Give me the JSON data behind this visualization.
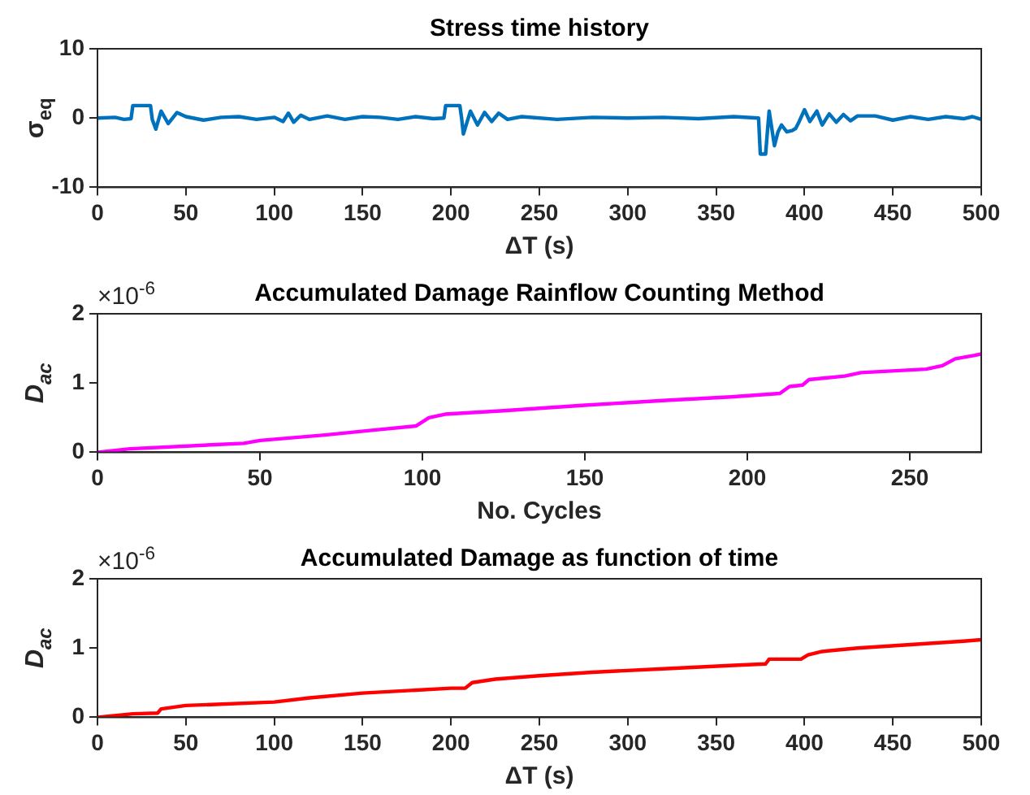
{
  "chart_data": [
    {
      "type": "line",
      "title": "Stress time history",
      "xlabel": "ΔT (s)",
      "ylabel": "σ$_{eq}$",
      "xlim": [
        0,
        500
      ],
      "xticks": [
        0,
        50,
        100,
        150,
        200,
        250,
        300,
        350,
        400,
        450,
        500
      ],
      "ylim": [
        -10,
        10
      ],
      "yticks": [
        -10,
        0,
        10
      ],
      "grid": false,
      "legend": false,
      "marker": "none",
      "line_style": "solid",
      "series": [
        {
          "color": "#0072bd",
          "x": [
            0,
            10,
            15,
            19,
            20,
            30,
            31,
            33,
            36,
            40,
            45,
            50,
            60,
            70,
            80,
            90,
            100,
            105,
            108,
            111,
            115,
            120,
            130,
            140,
            150,
            160,
            170,
            180,
            190,
            196,
            197,
            205,
            206,
            207,
            211,
            215,
            219,
            223,
            227,
            232,
            240,
            260,
            280,
            300,
            320,
            340,
            360,
            374,
            375,
            378,
            379,
            380,
            383,
            385,
            387,
            390,
            393,
            395,
            397,
            400,
            403,
            407,
            410,
            414,
            418,
            422,
            426,
            430,
            440,
            450,
            460,
            470,
            480,
            490,
            495,
            500
          ],
          "values": [
            0,
            0.1,
            -0.2,
            -0.1,
            1.8,
            1.8,
            -0.2,
            -1.6,
            1,
            -0.8,
            0.8,
            0.2,
            -0.3,
            0.1,
            0.2,
            -0.2,
            0.1,
            -0.5,
            0.7,
            -0.6,
            0.4,
            -0.2,
            0.3,
            -0.2,
            0.2,
            0.1,
            -0.2,
            0.2,
            -0.1,
            0,
            1.8,
            1.8,
            0,
            -2.3,
            1,
            -1,
            0.8,
            -0.5,
            0.7,
            -0.2,
            0.2,
            -0.2,
            0.1,
            0,
            0.1,
            -0.1,
            0.2,
            0,
            -5.2,
            -5.2,
            -2,
            1,
            -4,
            -2,
            -1,
            -2,
            -1.8,
            -1.5,
            -0.5,
            1.2,
            -0.5,
            1,
            -1,
            0.6,
            -0.6,
            0.5,
            -0.4,
            0.3,
            0.3,
            -0.3,
            0.2,
            -0.2,
            0.2,
            -0.1,
            0.2,
            -0.2
          ]
        }
      ]
    },
    {
      "type": "line",
      "title": "Accumulated Damage Rainflow Counting Method",
      "xlabel": "No. Cycles",
      "ylabel": "D$_{ac}$",
      "annotations": [
        "×10$^{-6}$"
      ],
      "xlim": [
        0,
        272
      ],
      "xticks": [
        0,
        50,
        100,
        150,
        200,
        250
      ],
      "ylim": [
        0,
        2
      ],
      "yticks": [
        0,
        1,
        2
      ],
      "grid": false,
      "legend": false,
      "marker": "none",
      "line_style": "solid",
      "series": [
        {
          "color": "#ff00ff",
          "x": [
            0,
            10,
            45,
            50,
            70,
            85,
            98,
            102,
            107,
            125,
            150,
            175,
            195,
            210,
            213,
            217,
            219,
            230,
            235,
            255,
            260,
            264,
            270,
            272
          ],
          "values": [
            0,
            0.05,
            0.13,
            0.17,
            0.25,
            0.32,
            0.38,
            0.5,
            0.55,
            0.6,
            0.68,
            0.75,
            0.8,
            0.85,
            0.95,
            0.97,
            1.05,
            1.1,
            1.15,
            1.2,
            1.25,
            1.35,
            1.4,
            1.42
          ]
        }
      ]
    },
    {
      "type": "line",
      "title": "Accumulated Damage as function of time",
      "xlabel": "ΔT (s)",
      "ylabel": "D$_{ac}$",
      "annotations": [
        "×10$^{-6}$"
      ],
      "xlim": [
        0,
        500
      ],
      "xticks": [
        0,
        50,
        100,
        150,
        200,
        250,
        300,
        350,
        400,
        450,
        500
      ],
      "ylim": [
        0,
        2
      ],
      "yticks": [
        0,
        1,
        2
      ],
      "grid": false,
      "legend": false,
      "marker": "none",
      "line_style": "solid",
      "series": [
        {
          "color": "#ff0000",
          "x": [
            0,
            20,
            34,
            36,
            50,
            100,
            120,
            150,
            200,
            208,
            212,
            225,
            250,
            280,
            320,
            360,
            378,
            380,
            398,
            402,
            410,
            430,
            460,
            490,
            500
          ],
          "values": [
            0,
            0.05,
            0.06,
            0.12,
            0.17,
            0.22,
            0.28,
            0.35,
            0.42,
            0.42,
            0.5,
            0.55,
            0.6,
            0.65,
            0.7,
            0.75,
            0.77,
            0.84,
            0.84,
            0.9,
            0.95,
            1,
            1.05,
            1.1,
            1.12
          ]
        }
      ]
    }
  ]
}
